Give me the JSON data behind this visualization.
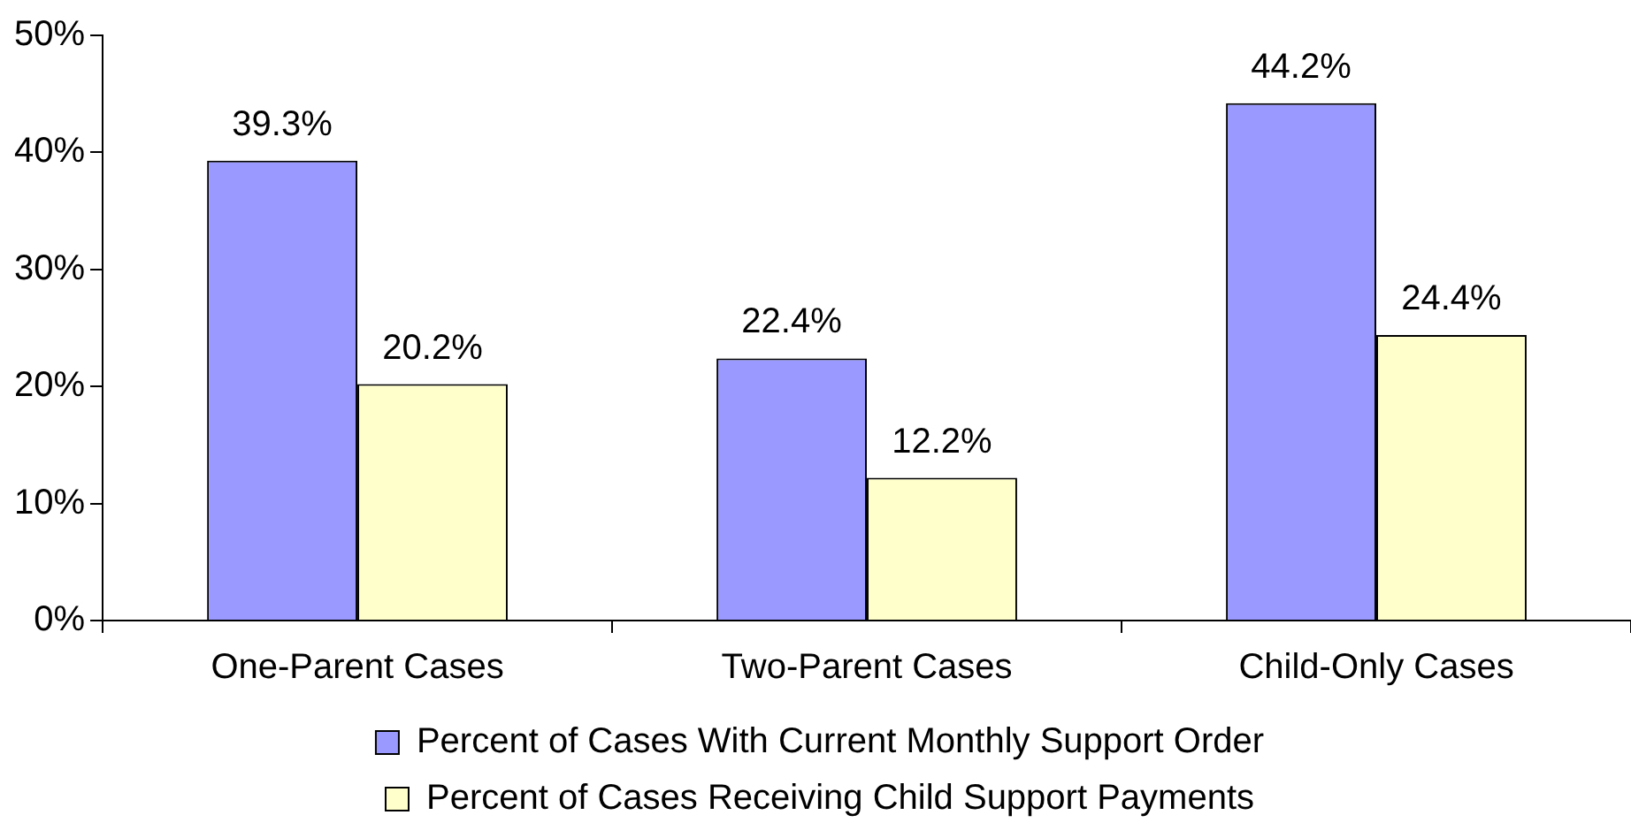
{
  "chart_data": {
    "type": "bar",
    "categories": [
      "One-Parent Cases",
      "Two-Parent Cases",
      "Child-Only Cases"
    ],
    "series": [
      {
        "name": "Percent of Cases With Current Monthly Support Order",
        "color": "#9999ff",
        "values": [
          39.3,
          22.4,
          44.2
        ],
        "value_labels": [
          "39.3%",
          "22.4%",
          "44.2%"
        ]
      },
      {
        "name": "Percent of Cases Receiving Child Support Payments",
        "color": "#ffffcc",
        "values": [
          20.2,
          12.2,
          24.4
        ],
        "value_labels": [
          "20.2%",
          "12.2%",
          "24.4%"
        ]
      }
    ],
    "ylim": [
      0,
      50
    ],
    "yticks": [
      {
        "value": 0,
        "label": "0%"
      },
      {
        "value": 10,
        "label": "10%"
      },
      {
        "value": 20,
        "label": "20%"
      },
      {
        "value": 30,
        "label": "30%"
      },
      {
        "value": 40,
        "label": "40%"
      },
      {
        "value": 50,
        "label": "50%"
      }
    ],
    "grid": false,
    "legend": "bottom"
  }
}
